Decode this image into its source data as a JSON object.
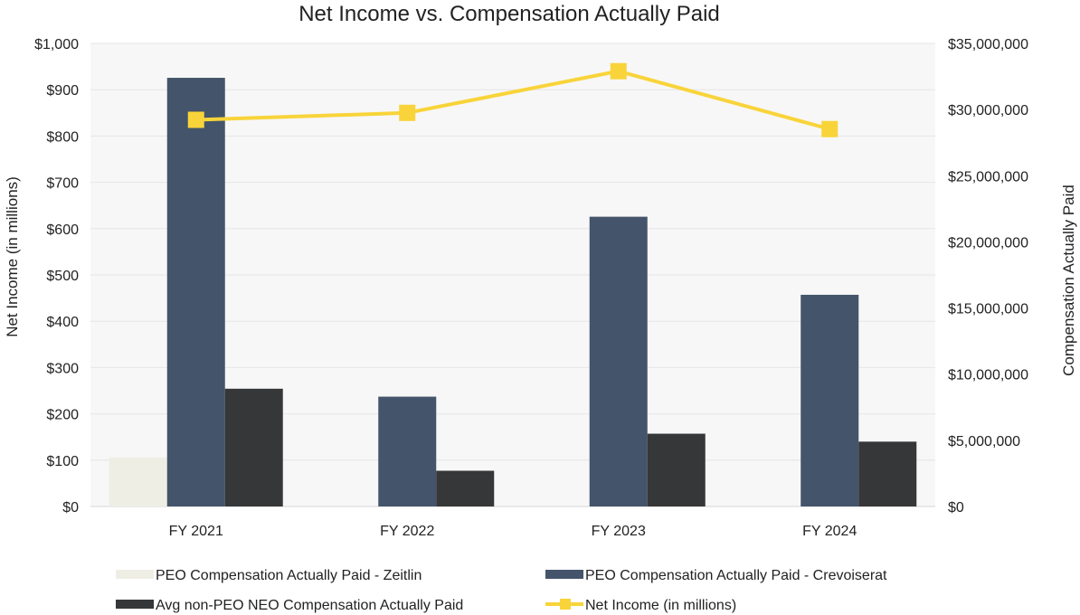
{
  "chart_data": {
    "type": "bar",
    "title": "Net Income vs. Compensation Actually Paid",
    "categories": [
      "FY 2021",
      "FY 2022",
      "FY 2023",
      "FY 2024"
    ],
    "ylabel_left": "Net Income (in millions)",
    "ylabel_right": "Compensation Actually Paid",
    "ylim_left": [
      0,
      1000
    ],
    "ylim_right": [
      0,
      35000000
    ],
    "yticks_left": [
      "$0",
      "$100",
      "$200",
      "$300",
      "$400",
      "$500",
      "$600",
      "$700",
      "$800",
      "$900",
      "$1,000"
    ],
    "yticks_right": [
      "$0",
      "$5,000,000",
      "$10,000,000",
      "$15,000,000",
      "$20,000,000",
      "$25,000,000",
      "$30,000,000",
      "$35,000,000"
    ],
    "grid": true,
    "legend_position": "bottom",
    "series": [
      {
        "name": "PEO Compensation Actually Paid - Zeitlin",
        "type": "bar",
        "axis": "right",
        "color": "#eeeee4",
        "values": [
          3700000,
          null,
          null,
          null
        ]
      },
      {
        "name": "PEO Compensation Actually Paid - Crevoiserat",
        "type": "bar",
        "axis": "right",
        "color": "#44546a",
        "values": [
          32400000,
          8300000,
          21900000,
          16000000
        ]
      },
      {
        "name": "Avg non-PEO NEO Compensation Actually Paid",
        "type": "bar",
        "axis": "right",
        "color": "#363738",
        "values": [
          8900000,
          2700000,
          5500000,
          4900000
        ]
      },
      {
        "name": "Net Income (in millions)",
        "type": "line",
        "axis": "left",
        "color": "#f8d43a",
        "values": [
          835,
          850,
          940,
          815
        ]
      }
    ]
  }
}
